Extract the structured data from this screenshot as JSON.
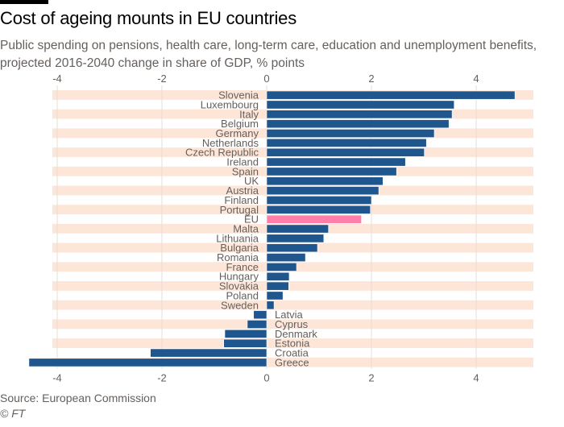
{
  "header": {
    "title": "Cost of ageing mounts in EU countries",
    "subtitle": "Public spending on pensions, health care, long-term care, education and unemployment benefits, projected 2016-2040 change in share of GDP, % points"
  },
  "footer": {
    "source": "Source: European Commission",
    "credit": "© FT"
  },
  "colors": {
    "bar": "#1f568e",
    "highlight": "#ff7faa",
    "stripe": "#fde6d8",
    "grid": "#e5dcd6"
  },
  "chart_data": {
    "type": "bar",
    "orientation": "horizontal",
    "title": "Cost of ageing mounts in EU countries",
    "xlabel": "% points",
    "ylabel": "",
    "xlim": [
      -4.6,
      5.1
    ],
    "xticks": [
      -4,
      -2,
      0,
      2,
      4
    ],
    "xtick_labels": [
      "-4",
      "-2",
      "0",
      "2",
      "4"
    ],
    "grid": true,
    "highlight_category": "EU",
    "categories": [
      "Slovenia",
      "Luxembourg",
      "Italy",
      "Belgium",
      "Germany",
      "Netherlands",
      "Czech Republic",
      "Ireland",
      "Spain",
      "UK",
      "Austria",
      "Finland",
      "Portugal",
      "EU",
      "Malta",
      "Lithuania",
      "Bulgaria",
      "Romania",
      "France",
      "Hungary",
      "Slovakia",
      "Poland",
      "Sweden",
      "Latvia",
      "Cyprus",
      "Denmark",
      "Estonia",
      "Croatia",
      "Greece"
    ],
    "values": [
      4.74,
      3.58,
      3.54,
      3.48,
      3.2,
      3.05,
      3.01,
      2.65,
      2.48,
      2.22,
      2.14,
      2.0,
      1.98,
      1.81,
      1.18,
      1.09,
      0.97,
      0.74,
      0.57,
      0.43,
      0.42,
      0.31,
      0.14,
      -0.25,
      -0.37,
      -0.8,
      -0.82,
      -2.22,
      -4.54
    ]
  }
}
